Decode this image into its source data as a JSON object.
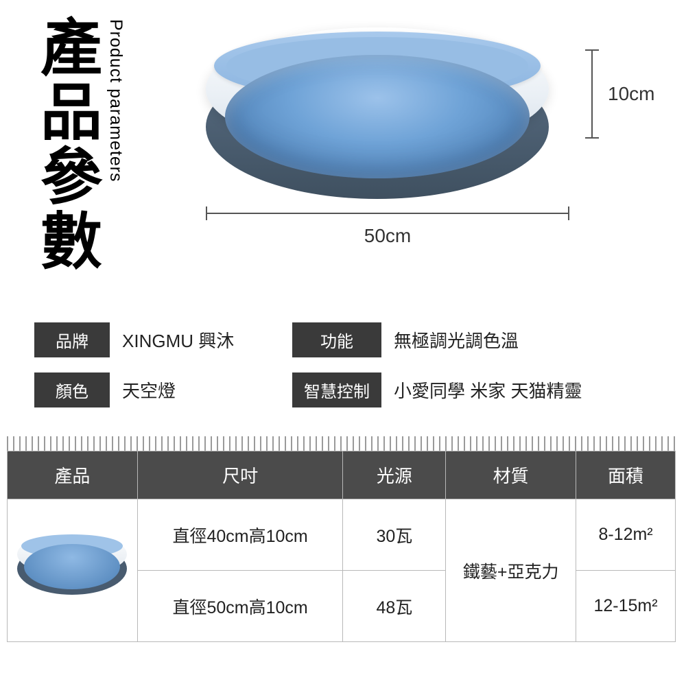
{
  "title": {
    "zh": "產品參數",
    "en": "Product parameters"
  },
  "dimensions": {
    "width_label": "50cm",
    "height_label": "10cm"
  },
  "specs": {
    "brand": {
      "tag": "品牌",
      "value": "XINGMU 興沐"
    },
    "function": {
      "tag": "功能",
      "value": "無極調光調色溫"
    },
    "color": {
      "tag": "顏色",
      "value": "天空燈"
    },
    "smart": {
      "tag": "智慧控制",
      "value": "小愛同學 米家 天猫精靈"
    }
  },
  "table": {
    "headers": {
      "product": "產品",
      "size": "尺吋",
      "power": "光源",
      "material": "材質",
      "area": "面積"
    },
    "material_value": "鐵藝+亞克力",
    "rows": [
      {
        "size": "直徑40cm高10cm",
        "power": "30瓦",
        "area": "8-12m²"
      },
      {
        "size": "直徑50cm高10cm",
        "power": "48瓦",
        "area": "12-15m²"
      }
    ]
  }
}
